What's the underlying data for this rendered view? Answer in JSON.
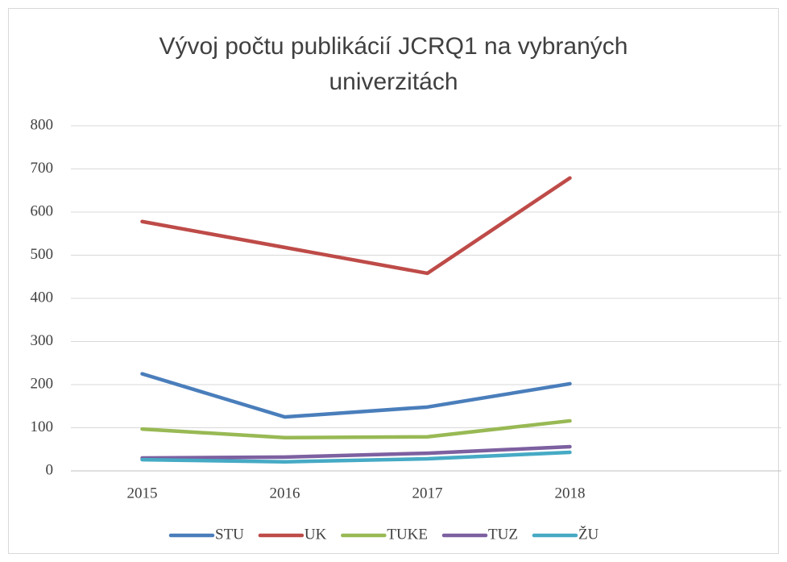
{
  "chart_data": {
    "type": "line",
    "title": "Vývoj počtu publikácií JCRQ1 na vybraných univerzitách",
    "categories": [
      "2015",
      "2016",
      "2017",
      "2018",
      null
    ],
    "series": [
      {
        "name": "STU",
        "color": "#4a7ebb",
        "values": [
          225,
          125,
          148,
          202,
          null
        ]
      },
      {
        "name": "UK",
        "color": "#be4b48",
        "values": [
          578,
          518,
          458,
          679,
          null
        ]
      },
      {
        "name": "TUKE",
        "color": "#98b954",
        "values": [
          97,
          77,
          79,
          116,
          null
        ]
      },
      {
        "name": "TUZ",
        "color": "#7d60a0",
        "values": [
          30,
          32,
          41,
          56,
          null
        ]
      },
      {
        "name": "ŽU",
        "color": "#46aac5",
        "values": [
          26,
          21,
          28,
          43,
          null
        ]
      }
    ],
    "ylim": [
      0,
      800
    ],
    "yticks": [
      0,
      100,
      200,
      300,
      400,
      500,
      600,
      700,
      800
    ],
    "grid": true,
    "legend": "bottom"
  }
}
